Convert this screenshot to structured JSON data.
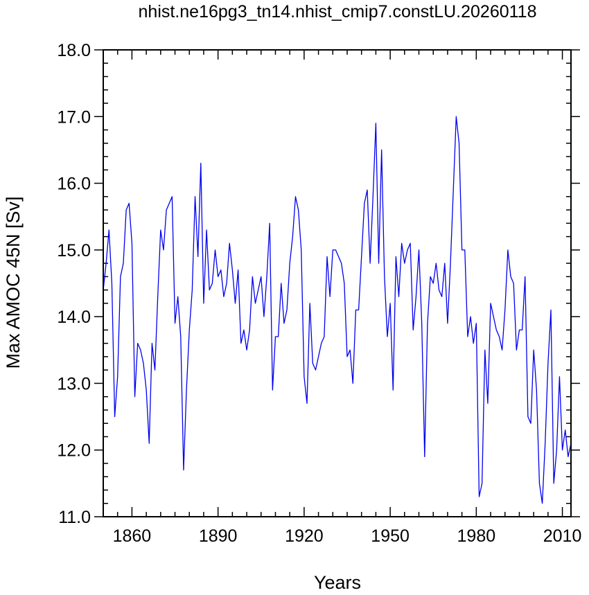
{
  "chart_data": {
    "type": "line",
    "title": "nhist.ne16pg3_tn14.nhist_cmip7.constLU.20260118",
    "xlabel": "Years",
    "ylabel": "Max AMOC 45N [Sv]",
    "xlim": [
      1850,
      2013
    ],
    "ylim": [
      11.0,
      18.0
    ],
    "x_ticks": [
      1860,
      1890,
      1920,
      1950,
      1980,
      2010
    ],
    "x_tick_labels": [
      "1860",
      "1890",
      "1920",
      "1950",
      "1980",
      "2010"
    ],
    "y_ticks": [
      11,
      12,
      13,
      14,
      15,
      16,
      17,
      18
    ],
    "y_tick_labels": [
      "11.0",
      "12.0",
      "13.0",
      "14.0",
      "15.0",
      "16.0",
      "17.0",
      "18.0"
    ],
    "grid": false,
    "line_color": "#0000ee",
    "series": [
      {
        "x": [
          1850,
          1851,
          1852,
          1853,
          1854,
          1855,
          1856,
          1857,
          1858,
          1859,
          1860,
          1861,
          1862,
          1863,
          1864,
          1865,
          1866,
          1867,
          1868,
          1869,
          1870,
          1871,
          1872,
          1873,
          1874,
          1875,
          1876,
          1877,
          1878,
          1879,
          1880,
          1881,
          1882,
          1883,
          1884,
          1885,
          1886,
          1887,
          1888,
          1889,
          1890,
          1891,
          1892,
          1893,
          1894,
          1895,
          1896,
          1897,
          1898,
          1899,
          1900,
          1901,
          1902,
          1903,
          1904,
          1905,
          1906,
          1907,
          1908,
          1909,
          1910,
          1911,
          1912,
          1913,
          1914,
          1915,
          1916,
          1917,
          1918,
          1919,
          1920,
          1921,
          1922,
          1923,
          1924,
          1925,
          1926,
          1927,
          1928,
          1929,
          1930,
          1931,
          1932,
          1933,
          1934,
          1935,
          1936,
          1937,
          1938,
          1939,
          1940,
          1941,
          1942,
          1943,
          1944,
          1945,
          1946,
          1947,
          1948,
          1949,
          1950,
          1951,
          1952,
          1953,
          1954,
          1955,
          1956,
          1957,
          1958,
          1959,
          1960,
          1961,
          1962,
          1963,
          1964,
          1965,
          1966,
          1967,
          1968,
          1969,
          1970,
          1971,
          1972,
          1973,
          1974,
          1975,
          1976,
          1977,
          1978,
          1979,
          1980,
          1981,
          1982,
          1983,
          1984,
          1985,
          1986,
          1987,
          1988,
          1989,
          1990,
          1991,
          1992,
          1993,
          1994,
          1995,
          1996,
          1997,
          1998,
          1999,
          2000,
          2001,
          2002,
          2003,
          2004,
          2005,
          2006,
          2007,
          2008,
          2009,
          2010,
          2011,
          2012,
          2013
        ],
        "y": [
          14.4,
          14.8,
          15.3,
          14.5,
          12.5,
          13.1,
          14.6,
          14.8,
          15.6,
          15.7,
          15.1,
          12.8,
          13.6,
          13.5,
          13.3,
          12.9,
          12.1,
          13.6,
          13.2,
          14.3,
          15.3,
          15.0,
          15.6,
          15.7,
          15.8,
          13.9,
          14.3,
          13.7,
          11.7,
          12.9,
          13.8,
          14.4,
          15.8,
          14.9,
          16.3,
          14.2,
          15.3,
          14.4,
          14.5,
          15.0,
          14.6,
          14.7,
          14.3,
          14.5,
          15.1,
          14.7,
          14.2,
          14.7,
          13.6,
          13.8,
          13.5,
          13.8,
          14.6,
          14.2,
          14.4,
          14.6,
          14.0,
          14.6,
          15.4,
          12.9,
          13.7,
          13.7,
          14.5,
          13.9,
          14.1,
          14.8,
          15.2,
          15.8,
          15.6,
          15.0,
          13.1,
          12.7,
          14.2,
          13.3,
          13.2,
          13.4,
          13.6,
          13.7,
          14.9,
          14.3,
          15.0,
          15.0,
          14.9,
          14.8,
          14.5,
          13.4,
          13.5,
          13.0,
          14.1,
          14.1,
          14.9,
          15.7,
          15.9,
          14.8,
          15.8,
          16.9,
          14.8,
          16.5,
          14.6,
          13.7,
          14.2,
          12.9,
          14.9,
          14.3,
          15.1,
          14.8,
          15.0,
          15.1,
          13.8,
          14.3,
          15.0,
          13.9,
          11.9,
          13.9,
          14.6,
          14.5,
          14.8,
          14.4,
          14.3,
          14.8,
          13.9,
          14.8,
          15.9,
          17.0,
          16.6,
          15.0,
          15.0,
          13.7,
          14.0,
          13.6,
          13.9,
          11.3,
          11.5,
          13.5,
          12.7,
          14.2,
          14.0,
          13.8,
          13.7,
          13.5,
          14.1,
          15.0,
          14.6,
          14.5,
          13.5,
          13.8,
          13.8,
          14.6,
          12.5,
          12.4,
          13.5,
          12.9,
          11.5,
          11.2,
          12.1,
          13.3,
          14.1,
          11.5,
          12.0,
          13.1,
          12.0,
          12.3,
          11.9,
          12.1
        ]
      }
    ]
  }
}
